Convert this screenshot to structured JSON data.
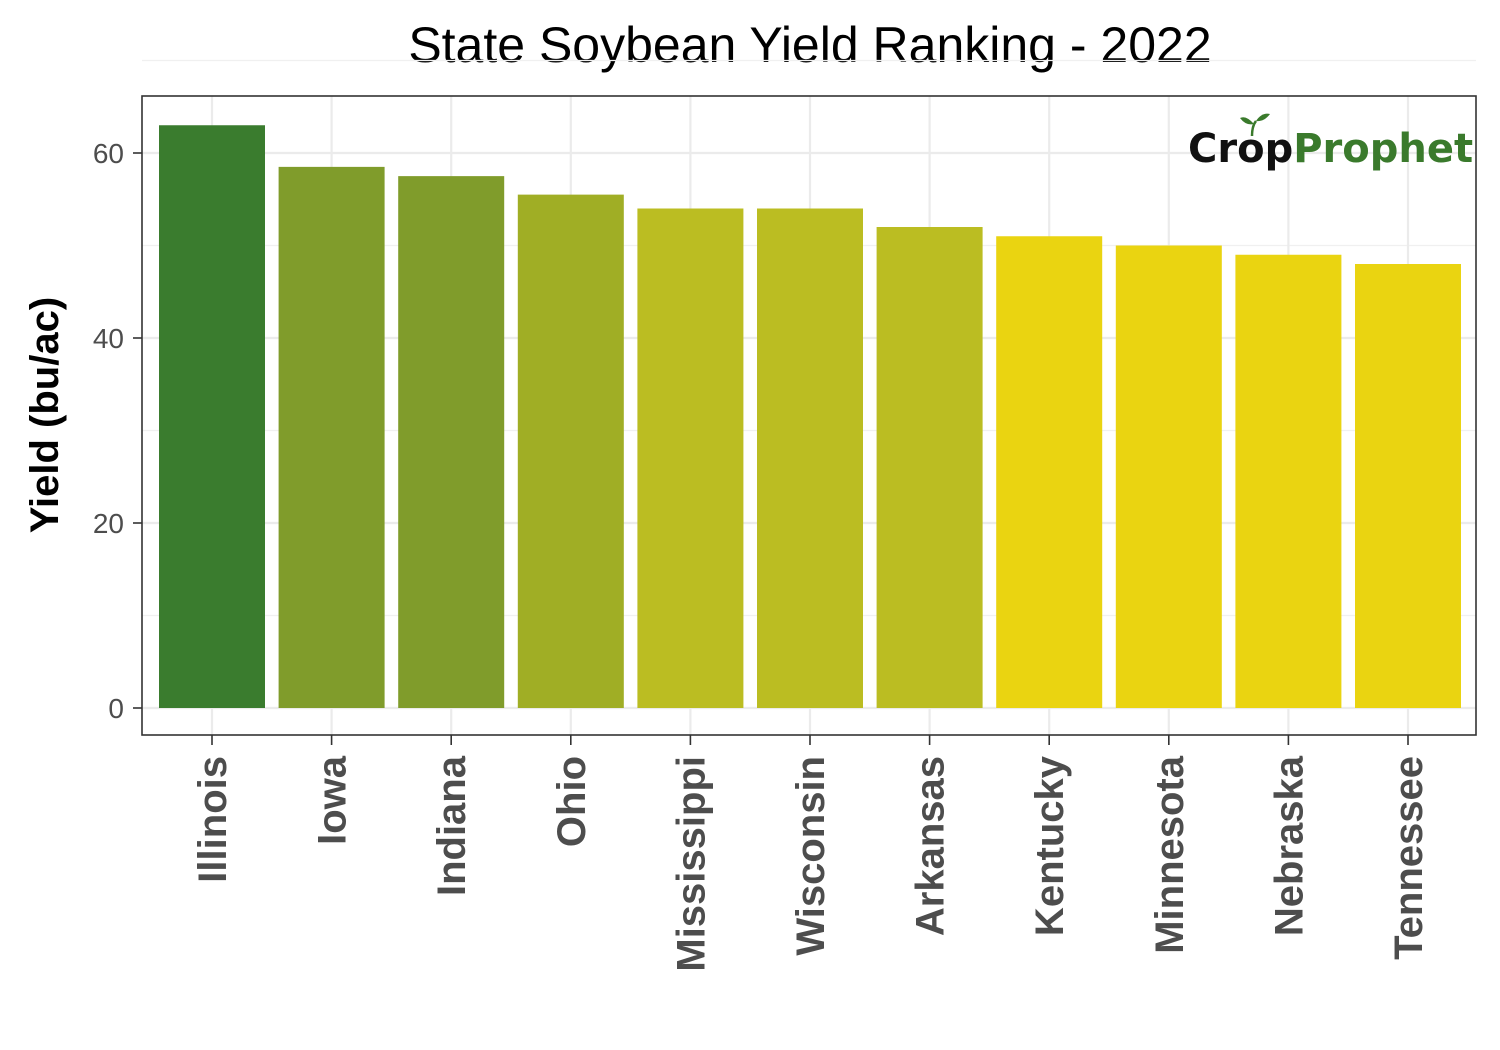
{
  "chart_data": {
    "type": "bar",
    "title": "State Soybean Yield Ranking - 2022",
    "xlabel": "",
    "ylabel": "Yield (bu/ac)",
    "ylim": [
      0,
      66
    ],
    "yticks": [
      0,
      20,
      40,
      60
    ],
    "grid": true,
    "legend": "none",
    "categories": [
      "Illinois",
      "Iowa",
      "Indiana",
      "Ohio",
      "Mississippi",
      "Wisconsin",
      "Arkansas",
      "Kentucky",
      "Minnesota",
      "Nebraska",
      "Tennessee"
    ],
    "values": [
      63,
      58.5,
      57.5,
      55.5,
      54,
      54,
      52,
      51,
      50,
      49,
      48
    ],
    "colors": [
      "#3a7c2e",
      "#809c2b",
      "#809c2b",
      "#a0ae25",
      "#bbbd22",
      "#bbbd22",
      "#bbbd22",
      "#ead411",
      "#ead411",
      "#ead411",
      "#ead411"
    ]
  },
  "logo": {
    "part1": "Crop",
    "part2": "Prophet",
    "color1": "#111111",
    "color2": "#3a7a2c"
  }
}
